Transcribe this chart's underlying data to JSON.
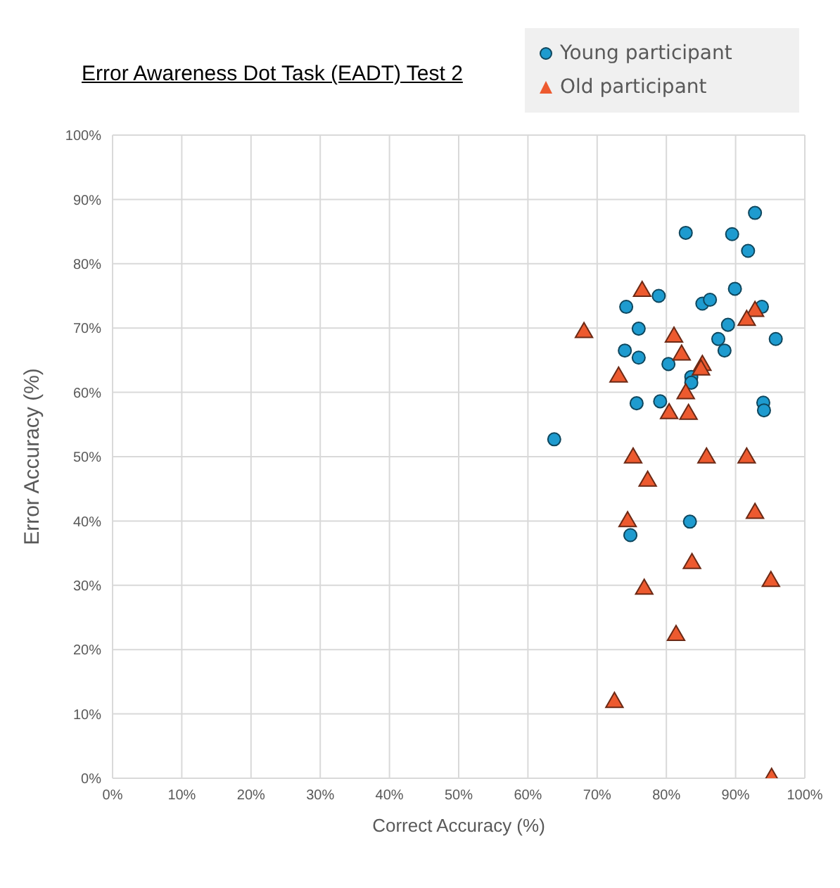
{
  "chart_data": {
    "type": "scatter",
    "title": "Error Awareness Dot Task (EADT) Test 2",
    "xlabel": "Correct Accuracy (%)",
    "ylabel": "Error Accuracy (%)",
    "series": [
      {
        "name": "Young participant",
        "color": "#1e9bcf",
        "marker": "circle",
        "x": [
          82.8,
          92.8,
          89.5,
          91.8,
          78.9,
          89.9,
          74.2,
          85.2,
          86.3,
          93.8,
          76.0,
          88.9,
          95.8,
          87.5,
          88.4,
          74.0,
          76.0,
          80.3,
          83.6,
          83.6,
          75.7,
          79.1,
          94.0,
          94.1,
          63.8,
          83.4,
          74.8
        ],
        "values": [
          84.8,
          87.9,
          84.6,
          82.0,
          75.0,
          76.1,
          73.3,
          73.8,
          74.4,
          73.3,
          69.9,
          70.5,
          68.3,
          68.3,
          66.5,
          66.5,
          65.4,
          64.4,
          62.4,
          61.5,
          58.3,
          58.6,
          58.4,
          57.2,
          52.7,
          39.9,
          37.8
        ]
      },
      {
        "name": "Old participant",
        "color": "#ed5a2f",
        "marker": "triangle",
        "x": [
          76.5,
          68.1,
          81.1,
          82.2,
          92.8,
          91.6,
          85.2,
          85.0,
          73.1,
          82.8,
          80.4,
          83.2,
          75.2,
          85.8,
          91.6,
          77.3,
          74.4,
          92.8,
          83.7,
          95.1,
          76.8,
          81.4,
          72.5,
          95.2
        ],
        "values": [
          75.7,
          69.3,
          68.6,
          65.8,
          72.6,
          71.2,
          64.2,
          63.5,
          62.4,
          59.8,
          56.7,
          56.6,
          49.8,
          49.8,
          49.8,
          46.2,
          39.9,
          41.2,
          33.4,
          30.6,
          29.4,
          22.2,
          11.8,
          0
        ]
      }
    ],
    "xlim": [
      0,
      100
    ],
    "ylim": [
      0,
      100
    ],
    "xticks": [
      {
        "value": 0,
        "label": "0%"
      },
      {
        "value": 10,
        "label": "10%"
      },
      {
        "value": 20,
        "label": "20%"
      },
      {
        "value": 30,
        "label": "30%"
      },
      {
        "value": 40,
        "label": "40%"
      },
      {
        "value": 50,
        "label": "50%"
      },
      {
        "value": 60,
        "label": "60%"
      },
      {
        "value": 70,
        "label": "70%"
      },
      {
        "value": 80,
        "label": "80%"
      },
      {
        "value": 90,
        "label": "90%"
      },
      {
        "value": 100,
        "label": "100%"
      }
    ],
    "yticks": [
      {
        "value": 0,
        "label": "0%"
      },
      {
        "value": 10,
        "label": "10%"
      },
      {
        "value": 20,
        "label": "20%"
      },
      {
        "value": 30,
        "label": "30%"
      },
      {
        "value": 40,
        "label": "40%"
      },
      {
        "value": 50,
        "label": "50%"
      },
      {
        "value": 60,
        "label": "60%"
      },
      {
        "value": 70,
        "label": "70%"
      },
      {
        "value": 80,
        "label": "80%"
      },
      {
        "value": 90,
        "label": "90%"
      },
      {
        "value": 100,
        "label": "100%"
      }
    ],
    "grid": true,
    "legend": "top right"
  }
}
